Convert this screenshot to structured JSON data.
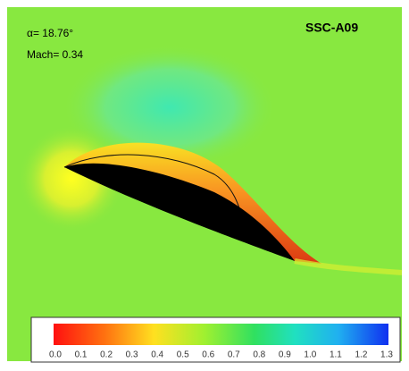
{
  "figure": {
    "alpha_label": "α= 18.76°",
    "mach_label": "Mach= 0.34",
    "airfoil_name": "SSC-A09",
    "colorbar": {
      "ticks": [
        "0.0",
        "0.1",
        "0.2",
        "0.3",
        "0.4",
        "0.5",
        "0.6",
        "0.7",
        "0.8",
        "0.9",
        "1.0",
        "1.1",
        "1.2",
        "1.3"
      ]
    }
  }
}
